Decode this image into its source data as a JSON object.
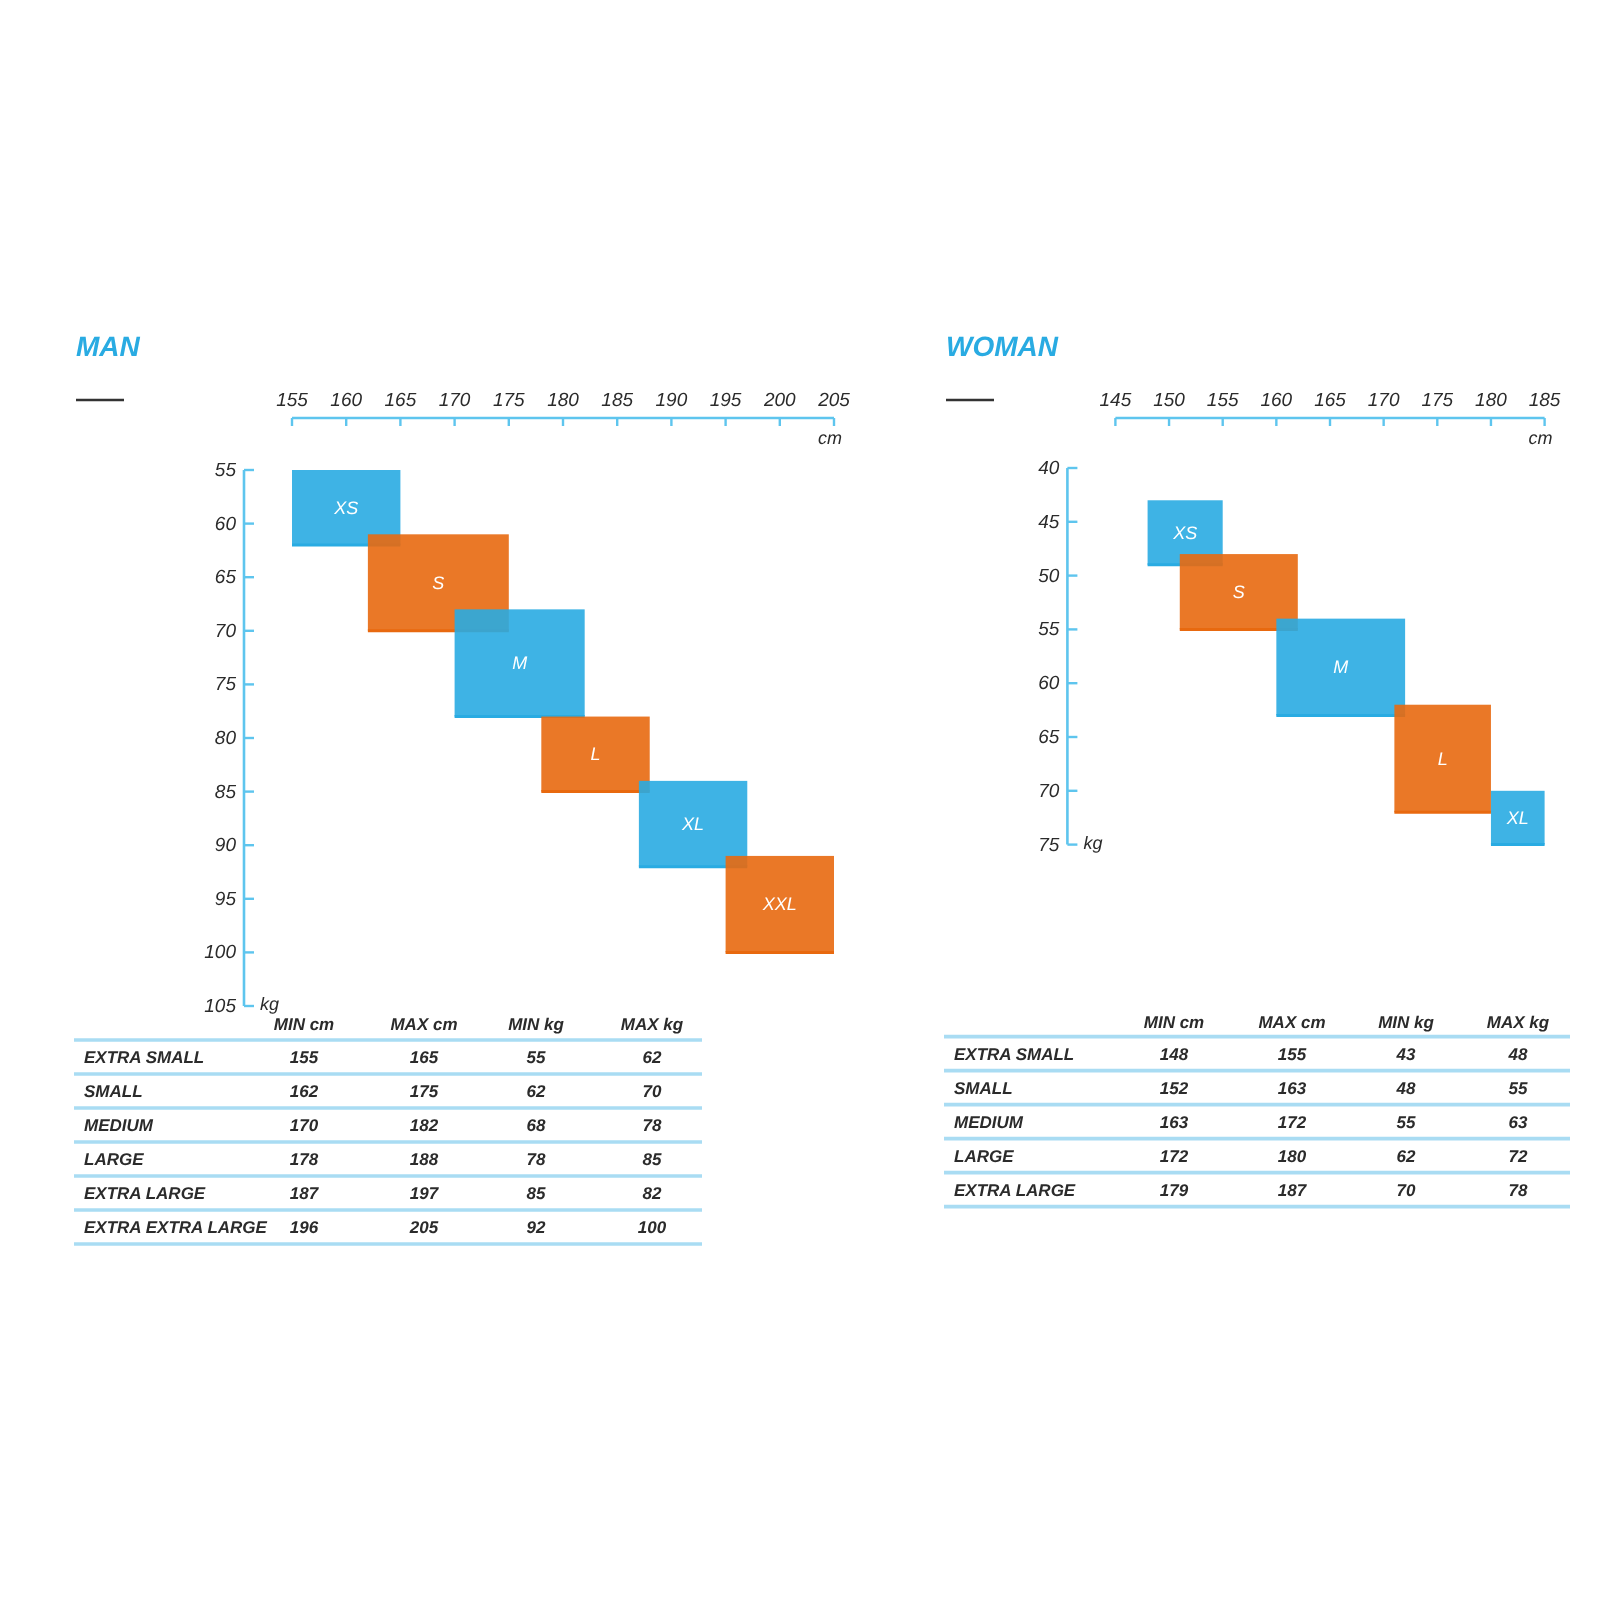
{
  "chart_data": [
    {
      "type": "bar",
      "title": "MAN",
      "xlabel": "cm",
      "ylabel": "kg",
      "xlim": [
        155,
        205
      ],
      "xticks": [
        155,
        160,
        165,
        170,
        175,
        180,
        185,
        190,
        195,
        200,
        205
      ],
      "ylim": [
        105,
        55
      ],
      "yticks": [
        55,
        60,
        65,
        70,
        75,
        80,
        85,
        90,
        95,
        100,
        105
      ],
      "series": [
        {
          "name": "XS",
          "color": "#29abe2",
          "x": [
            160
          ],
          "base": [
            55
          ],
          "values": [
            7
          ],
          "xerrors": [
            [
              155,
              165
            ]
          ]
        },
        {
          "name": "S",
          "color": "#e8690f",
          "x": [
            168.5
          ],
          "base": [
            61
          ],
          "values": [
            9
          ],
          "xerrors": [
            [
              162,
              175
            ]
          ]
        },
        {
          "name": "M",
          "color": "#29abe2",
          "x": [
            176
          ],
          "base": [
            68
          ],
          "values": [
            10
          ],
          "xerrors": [
            [
              170,
              182
            ]
          ]
        },
        {
          "name": "L",
          "color": "#e8690f",
          "x": [
            183
          ],
          "base": [
            78
          ],
          "values": [
            7
          ],
          "xerrors": [
            [
              178,
              188
            ]
          ]
        },
        {
          "name": "XL",
          "color": "#29abe2",
          "x": [
            192
          ],
          "base": [
            84
          ],
          "values": [
            8
          ],
          "xerrors": [
            [
              187,
              197
            ]
          ]
        },
        {
          "name": "XXL",
          "color": "#e8690f",
          "x": [
            200
          ],
          "base": [
            91
          ],
          "values": [
            9
          ],
          "xerrors": [
            [
              195,
              205
            ]
          ]
        }
      ]
    },
    {
      "type": "bar",
      "title": "WOMAN",
      "xlabel": "cm",
      "ylabel": "kg",
      "xlim": [
        145,
        185
      ],
      "xticks": [
        145,
        150,
        155,
        160,
        165,
        170,
        175,
        180,
        185
      ],
      "ylim": [
        75,
        40
      ],
      "yticks": [
        40,
        45,
        50,
        55,
        60,
        65,
        70,
        75
      ],
      "series": [
        {
          "name": "XS",
          "color": "#29abe2",
          "x": [
            151.5
          ],
          "base": [
            43
          ],
          "values": [
            6
          ],
          "xerrors": [
            [
              148,
              155
            ]
          ]
        },
        {
          "name": "S",
          "color": "#e8690f",
          "x": [
            156.5
          ],
          "base": [
            48
          ],
          "values": [
            7
          ],
          "xerrors": [
            [
              151,
              162
            ]
          ]
        },
        {
          "name": "M",
          "color": "#29abe2",
          "x": [
            166
          ],
          "base": [
            54
          ],
          "values": [
            9
          ],
          "xerrors": [
            [
              160,
              172
            ]
          ]
        },
        {
          "name": "L",
          "color": "#e8690f",
          "x": [
            175.5
          ],
          "base": [
            62
          ],
          "values": [
            10
          ],
          "xerrors": [
            [
              171,
              180
            ]
          ]
        },
        {
          "name": "XL",
          "color": "#29abe2",
          "x": [
            182.5
          ],
          "base": [
            70
          ],
          "values": [
            5
          ],
          "xerrors": [
            [
              180,
              185
            ]
          ]
        }
      ]
    },
    {
      "type": "other",
      "categories": [
        "EXTRA SMALL",
        "SMALL",
        "MEDIUM",
        "LARGE",
        "EXTRA LARGE",
        "EXTRA EXTRA LARGE"
      ],
      "series": [
        {
          "name": "MIN cm",
          "values": [
            155,
            162,
            170,
            178,
            187,
            196
          ]
        },
        {
          "name": "MAX cm",
          "values": [
            165,
            175,
            182,
            188,
            197,
            205
          ]
        },
        {
          "name": "MIN kg",
          "values": [
            55,
            62,
            68,
            78,
            85,
            92
          ]
        },
        {
          "name": "MAX kg",
          "values": [
            62,
            70,
            78,
            85,
            82,
            100
          ]
        }
      ],
      "data_labels": true
    },
    {
      "type": "other",
      "categories": [
        "EXTRA SMALL",
        "SMALL",
        "MEDIUM",
        "LARGE",
        "EXTRA LARGE"
      ],
      "series": [
        {
          "name": "MIN cm",
          "values": [
            148,
            152,
            163,
            172,
            179
          ]
        },
        {
          "name": "MAX cm",
          "values": [
            155,
            163,
            172,
            180,
            187
          ]
        },
        {
          "name": "MIN kg",
          "values": [
            43,
            48,
            55,
            62,
            70
          ]
        },
        {
          "name": "MAX kg",
          "values": [
            48,
            55,
            63,
            72,
            78
          ]
        }
      ],
      "data_labels": true
    }
  ]
}
